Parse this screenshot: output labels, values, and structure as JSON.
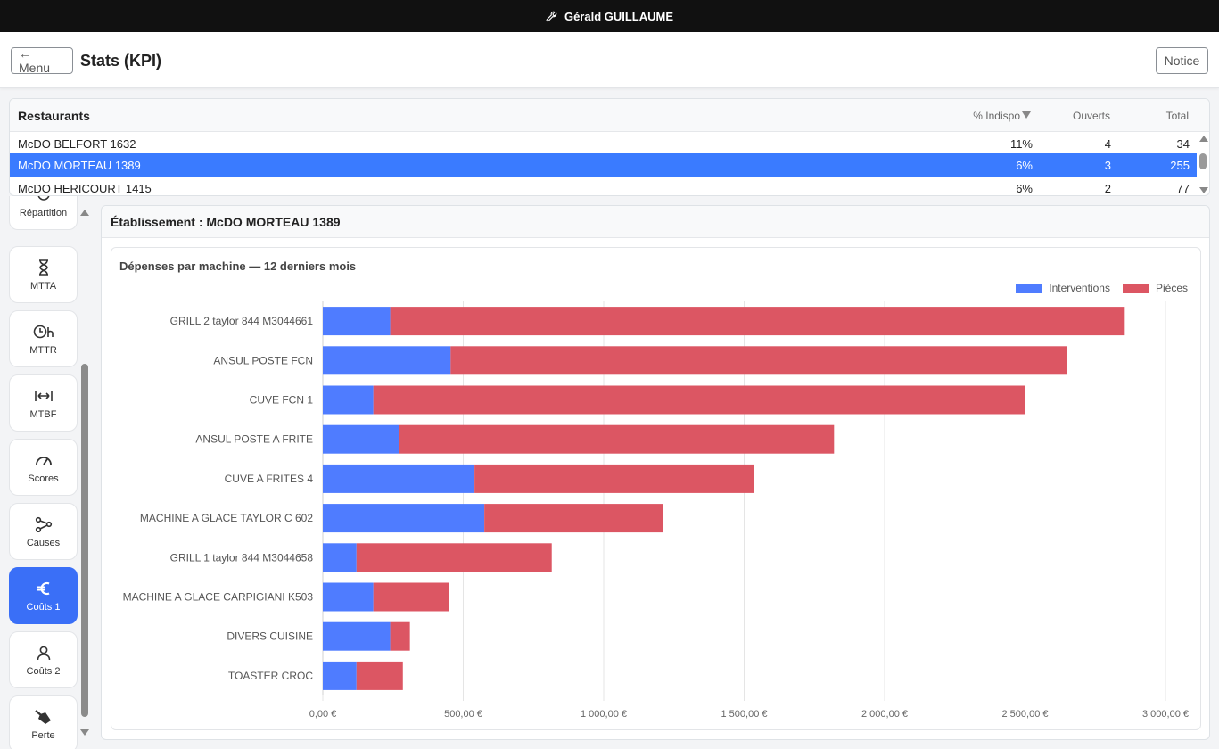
{
  "topbar": {
    "user_name": "Gérald GUILLAUME",
    "icon": "wrench-icon"
  },
  "header": {
    "menu_label": "← Menu",
    "title": "Stats (KPI)",
    "notice_label": "Notice"
  },
  "restaurants": {
    "title": "Restaurants",
    "columns": {
      "indispo": "% Indispo",
      "sort_icon": "sort-down-icon",
      "ouverts": "Ouverts",
      "total": "Total"
    },
    "rows": [
      {
        "name": "McDO BELFORT 1632",
        "indispo": "11%",
        "ouverts": "4",
        "total": "34",
        "selected": false
      },
      {
        "name": "McDO MORTEAU 1389",
        "indispo": "6%",
        "ouverts": "3",
        "total": "255",
        "selected": true
      },
      {
        "name": "McDO HERICOURT 1415",
        "indispo": "6%",
        "ouverts": "2",
        "total": "77",
        "selected": false
      }
    ]
  },
  "sidebar": {
    "items": [
      {
        "label": "Répartition",
        "icon": "pie-chart-icon",
        "active": false
      },
      {
        "label": "MTTA",
        "icon": "hourglass-icon",
        "active": false
      },
      {
        "label": "MTTR",
        "icon": "clock-hour-icon",
        "active": false
      },
      {
        "label": "MTBF",
        "icon": "arrows-between-icon",
        "active": false
      },
      {
        "label": "Scores",
        "icon": "gauge-icon",
        "active": false
      },
      {
        "label": "Causes",
        "icon": "branches-icon",
        "active": false
      },
      {
        "label": "Coûts 1",
        "icon": "euro-icon",
        "active": true
      },
      {
        "label": "Coûts 2",
        "icon": "person-icon",
        "active": false
      },
      {
        "label": "Perte",
        "icon": "shovel-icon",
        "active": false
      }
    ]
  },
  "etablissement": {
    "title": "Établissement : McDO MORTEAU 1389"
  },
  "chart_title": "Dépenses par machine — 12 derniers mois",
  "colors": {
    "interventions": "#4f7cff",
    "pieces": "#dc5663",
    "accent": "#3a6ff7"
  },
  "chart_data": {
    "type": "bar",
    "orientation": "horizontal",
    "stacked": true,
    "title": "Dépenses par machine — 12 derniers mois",
    "categories": [
      "GRILL 2 taylor 844 M3044661",
      "ANSUL POSTE  FCN",
      "CUVE FCN 1",
      "ANSUL POSTE A FRITE",
      "CUVE A FRITES 4",
      "MACHINE A GLACE TAYLOR C 602",
      "GRILL 1 taylor 844 M3044658",
      "MACHINE A GLACE CARPIGIANI K503",
      "DIVERS CUISINE",
      "TOASTER CROC"
    ],
    "series": [
      {
        "name": "Interventions",
        "values": [
          240,
          455,
          180,
          270,
          540,
          575,
          120,
          180,
          240,
          120
        ]
      },
      {
        "name": "Pièces",
        "values": [
          2615,
          2195,
          2320,
          1550,
          995,
          635,
          695,
          270,
          70,
          165
        ]
      }
    ],
    "xlim": [
      0,
      3000
    ],
    "xticks": [
      0,
      500,
      1000,
      1500,
      2000,
      2500,
      3000
    ],
    "xtick_labels": [
      "0,00 €",
      "500,00 €",
      "1 000,00 €",
      "1 500,00 €",
      "2 000,00 €",
      "2 500,00 €",
      "3 000,00 €"
    ],
    "legend": "top-right",
    "grid": true
  }
}
